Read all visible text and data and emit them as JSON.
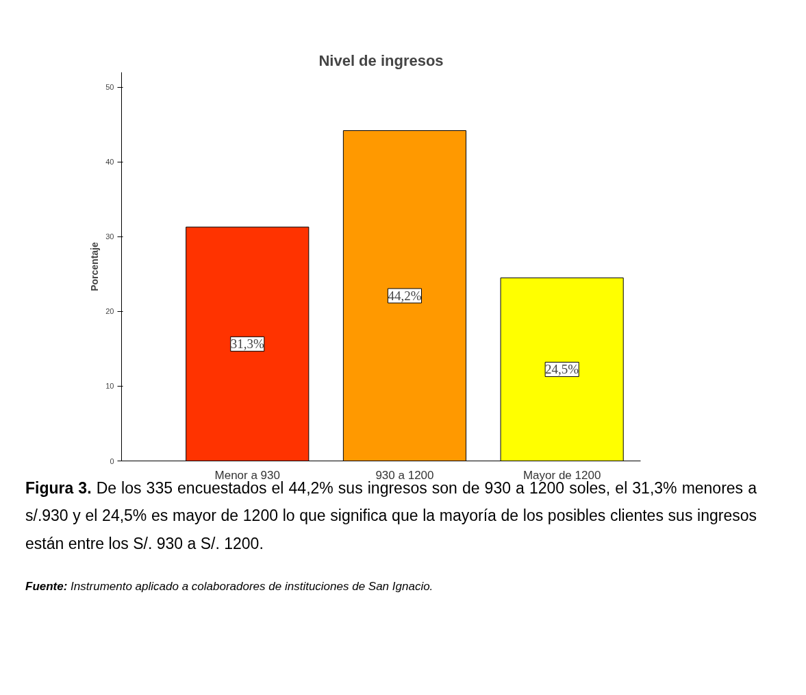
{
  "chart_data": {
    "type": "bar",
    "title": "Nivel de ingresos",
    "ylabel": "Porcentaje",
    "categories": [
      "Menor a 930",
      "930 a 1200",
      "Mayor de 1200"
    ],
    "values": [
      31.3,
      44.2,
      24.5
    ],
    "colors": [
      "#ff3300",
      "#ff9900",
      "#ffff00"
    ],
    "value_labels": [
      "31,3%",
      "44,2%",
      "24,5%"
    ],
    "ylim": [
      0,
      52
    ],
    "yticks": [
      0,
      10,
      20,
      30,
      40,
      50
    ],
    "grid": false,
    "annotations": [
      "Figura 3.",
      "De los 335 encuestados el 44,2% sus ingresos son de 930 a 1200 soles, el 31,3% menores a s/.930 y el 24,5% es mayor de 1200 lo que significa que la mayoría de los posibles clientes sus ingresos están entre los S/. 930 a S/. 1200.",
      "Fuente:",
      "Instrumento aplicado a colaboradores de instituciones de San Ignacio."
    ]
  }
}
